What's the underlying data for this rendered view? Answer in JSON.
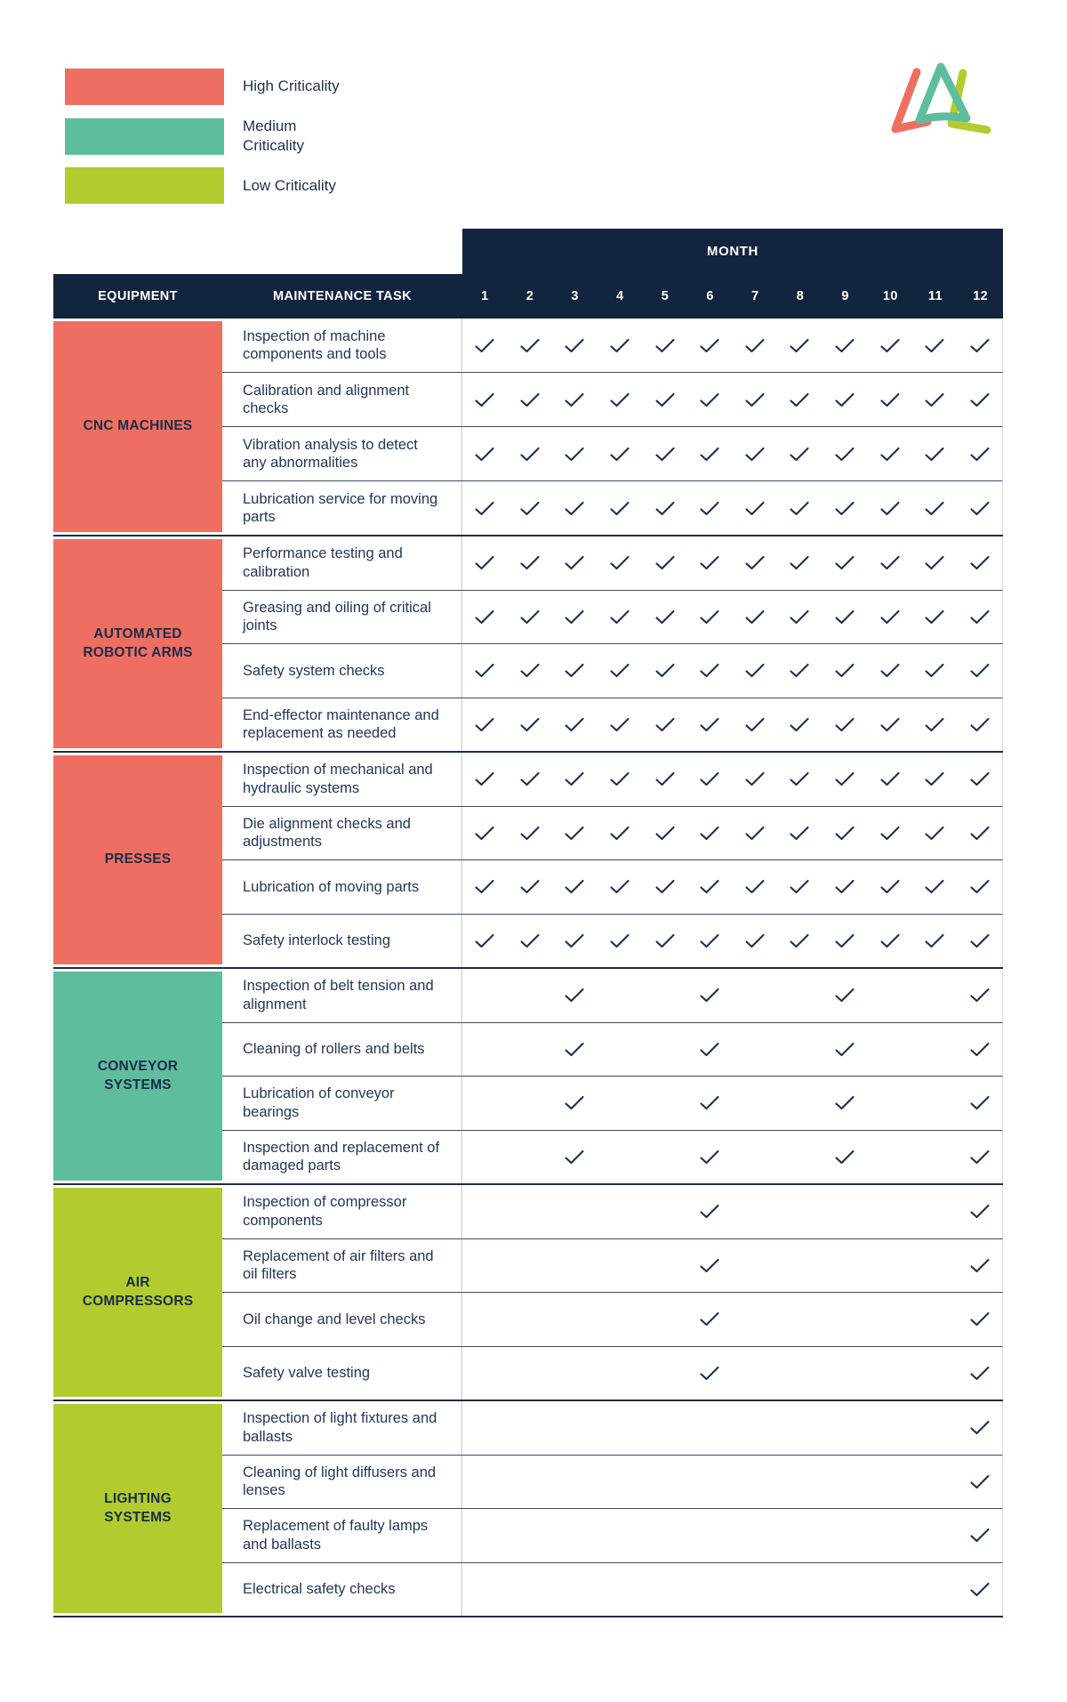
{
  "legend": {
    "items": [
      {
        "key": "high",
        "label": "High Criticality",
        "color": "#ee6f62"
      },
      {
        "key": "medium",
        "label": "Medium Criticality",
        "color": "#5ebd9d"
      },
      {
        "key": "low",
        "label": "Low Criticality",
        "color": "#b2cb2f"
      }
    ]
  },
  "logo": {
    "icon": "three-triangles-logo",
    "colors": {
      "left": "#ee6f62",
      "center": "#5ebd9d",
      "right": "#b2cb2f"
    }
  },
  "colors": {
    "header_navy": "#13243f",
    "text_navy": "#243659",
    "check": "#1d2e4e"
  },
  "table": {
    "month_header": "MONTH",
    "col_equipment": "EQUIPMENT",
    "col_task": "MAINTENANCE TASK",
    "months": [
      "1",
      "2",
      "3",
      "4",
      "5",
      "6",
      "7",
      "8",
      "9",
      "10",
      "11",
      "12"
    ],
    "check_symbol": "✓",
    "sections": [
      {
        "equipment": "CNC MACHINES",
        "criticality": "high",
        "color": "#ee6f62",
        "tasks": [
          {
            "label": "Inspection of machine components and tools",
            "months": [
              1,
              2,
              3,
              4,
              5,
              6,
              7,
              8,
              9,
              10,
              11,
              12
            ]
          },
          {
            "label": "Calibration and alignment checks",
            "months": [
              1,
              2,
              3,
              4,
              5,
              6,
              7,
              8,
              9,
              10,
              11,
              12
            ]
          },
          {
            "label": "Vibration analysis to detect any abnormalities",
            "months": [
              1,
              2,
              3,
              4,
              5,
              6,
              7,
              8,
              9,
              10,
              11,
              12
            ]
          },
          {
            "label": "Lubrication service for moving parts",
            "months": [
              1,
              2,
              3,
              4,
              5,
              6,
              7,
              8,
              9,
              10,
              11,
              12
            ]
          }
        ]
      },
      {
        "equipment": "AUTOMATED ROBOTIC ARMS",
        "criticality": "high",
        "color": "#ee6f62",
        "tasks": [
          {
            "label": "Performance testing and calibration",
            "months": [
              1,
              2,
              3,
              4,
              5,
              6,
              7,
              8,
              9,
              10,
              11,
              12
            ]
          },
          {
            "label": "Greasing and oiling of critical joints",
            "months": [
              1,
              2,
              3,
              4,
              5,
              6,
              7,
              8,
              9,
              10,
              11,
              12
            ]
          },
          {
            "label": "Safety system checks",
            "months": [
              1,
              2,
              3,
              4,
              5,
              6,
              7,
              8,
              9,
              10,
              11,
              12
            ]
          },
          {
            "label": "End-effector maintenance and replacement as needed",
            "months": [
              1,
              2,
              3,
              4,
              5,
              6,
              7,
              8,
              9,
              10,
              11,
              12
            ]
          }
        ]
      },
      {
        "equipment": "PRESSES",
        "criticality": "high",
        "color": "#ee6f62",
        "tasks": [
          {
            "label": "Inspection of mechanical and hydraulic systems",
            "months": [
              1,
              2,
              3,
              4,
              5,
              6,
              7,
              8,
              9,
              10,
              11,
              12
            ]
          },
          {
            "label": "Die alignment checks and adjustments",
            "months": [
              1,
              2,
              3,
              4,
              5,
              6,
              7,
              8,
              9,
              10,
              11,
              12
            ]
          },
          {
            "label": "Lubrication of moving parts",
            "months": [
              1,
              2,
              3,
              4,
              5,
              6,
              7,
              8,
              9,
              10,
              11,
              12
            ]
          },
          {
            "label": "Safety interlock testing",
            "months": [
              1,
              2,
              3,
              4,
              5,
              6,
              7,
              8,
              9,
              10,
              11,
              12
            ]
          }
        ]
      },
      {
        "equipment": "CONVEYOR SYSTEMS",
        "criticality": "medium",
        "color": "#5ebd9d",
        "tasks": [
          {
            "label": "Inspection of belt tension and alignment",
            "months": [
              3,
              6,
              9,
              12
            ]
          },
          {
            "label": "Cleaning of rollers and belts",
            "months": [
              3,
              6,
              9,
              12
            ]
          },
          {
            "label": "Lubrication of conveyor bearings",
            "months": [
              3,
              6,
              9,
              12
            ]
          },
          {
            "label": "Inspection and replacement of damaged parts",
            "months": [
              3,
              6,
              9,
              12
            ]
          }
        ]
      },
      {
        "equipment": "AIR COMPRESSORS",
        "criticality": "low",
        "color": "#b2cb2f",
        "tasks": [
          {
            "label": "Inspection of compressor components",
            "months": [
              6,
              12
            ]
          },
          {
            "label": "Replacement of air filters and oil filters",
            "months": [
              6,
              12
            ]
          },
          {
            "label": "Oil change and level checks",
            "months": [
              6,
              12
            ]
          },
          {
            "label": "Safety valve testing",
            "months": [
              6,
              12
            ]
          }
        ]
      },
      {
        "equipment": "LIGHTING SYSTEMS",
        "criticality": "low",
        "color": "#b2cb2f",
        "tasks": [
          {
            "label": "Inspection of light fixtures and ballasts",
            "months": [
              12
            ]
          },
          {
            "label": "Cleaning of light diffusers and lenses",
            "months": [
              12
            ]
          },
          {
            "label": "Replacement of faulty lamps and ballasts",
            "months": [
              12
            ]
          },
          {
            "label": "Electrical safety checks",
            "months": [
              12
            ]
          }
        ]
      }
    ]
  }
}
